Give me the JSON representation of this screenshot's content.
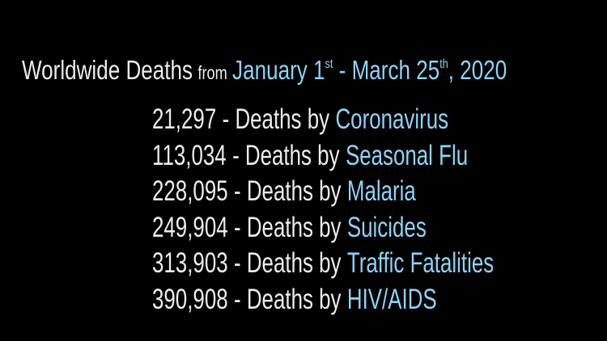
{
  "title": {
    "subject": "Worldwide Deaths",
    "from": "from",
    "start": "January 1",
    "start_suffix": "st",
    "middle": "- March 25",
    "end_suffix": "th",
    "end": ", 2020"
  },
  "rows": [
    {
      "count": "21,297",
      "label": "- Deaths by",
      "cause": "Coronavirus"
    },
    {
      "count": "113,034",
      "label": "- Deaths by",
      "cause": "Seasonal Flu"
    },
    {
      "count": "228,095",
      "label": "- Deaths by",
      "cause": "Malaria"
    },
    {
      "count": "249,904",
      "label": "- Deaths by",
      "cause": "Suicides"
    },
    {
      "count": "313,903",
      "label": "- Deaths by",
      "cause": "Traffic Fatalities"
    },
    {
      "count": "390,908",
      "label": "- Deaths by",
      "cause": "HIV/AIDS"
    }
  ]
}
